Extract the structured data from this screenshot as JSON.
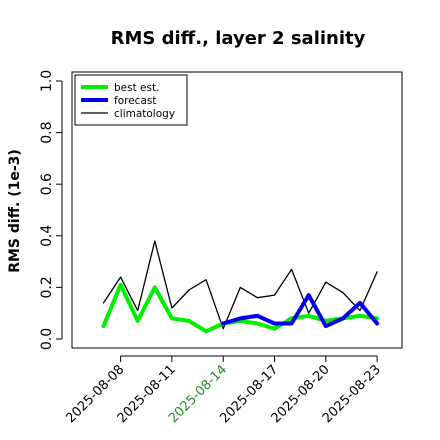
{
  "chart_data": {
    "type": "line",
    "title": "RMS diff., layer 2 salinity",
    "xlabel": "",
    "ylabel": "RMS diff. (1e-3)",
    "ylim": [
      0,
      1.0
    ],
    "yticks": [
      "0.0",
      "0.2",
      "0.4",
      "0.6",
      "0.8",
      "1.0"
    ],
    "x": [
      "2025-08-07",
      "2025-08-08",
      "2025-08-09",
      "2025-08-10",
      "2025-08-11",
      "2025-08-12",
      "2025-08-13",
      "2025-08-14",
      "2025-08-15",
      "2025-08-16",
      "2025-08-17",
      "2025-08-18",
      "2025-08-19",
      "2025-08-20",
      "2025-08-21",
      "2025-08-22",
      "2025-08-23"
    ],
    "xticks": [
      "2025-08-08",
      "2025-08-11",
      "2025-08-14",
      "2025-08-17",
      "2025-08-20",
      "2025-08-23"
    ],
    "highlight_tick": "2025-08-14",
    "highlight_color": "#228b22",
    "legend_position": "top-left",
    "grid": false,
    "series": [
      {
        "name": "best est.",
        "color": "#00ee00",
        "values": [
          0.05,
          0.21,
          0.07,
          0.2,
          0.08,
          0.07,
          0.03,
          0.06,
          0.07,
          0.06,
          0.04,
          0.08,
          0.09,
          0.07,
          0.08,
          0.09,
          0.08
        ]
      },
      {
        "name": "forecast",
        "color": "#0000ee",
        "values": [
          null,
          null,
          null,
          null,
          null,
          null,
          null,
          0.06,
          0.08,
          0.09,
          0.06,
          0.06,
          0.17,
          0.05,
          0.08,
          0.14,
          0.06
        ]
      },
      {
        "name": "climatology",
        "color": "#000000",
        "values": [
          0.14,
          0.24,
          0.11,
          0.38,
          0.12,
          0.19,
          0.23,
          0.04,
          0.2,
          0.16,
          0.17,
          0.27,
          0.1,
          0.22,
          0.18,
          0.11,
          0.26
        ]
      }
    ]
  }
}
